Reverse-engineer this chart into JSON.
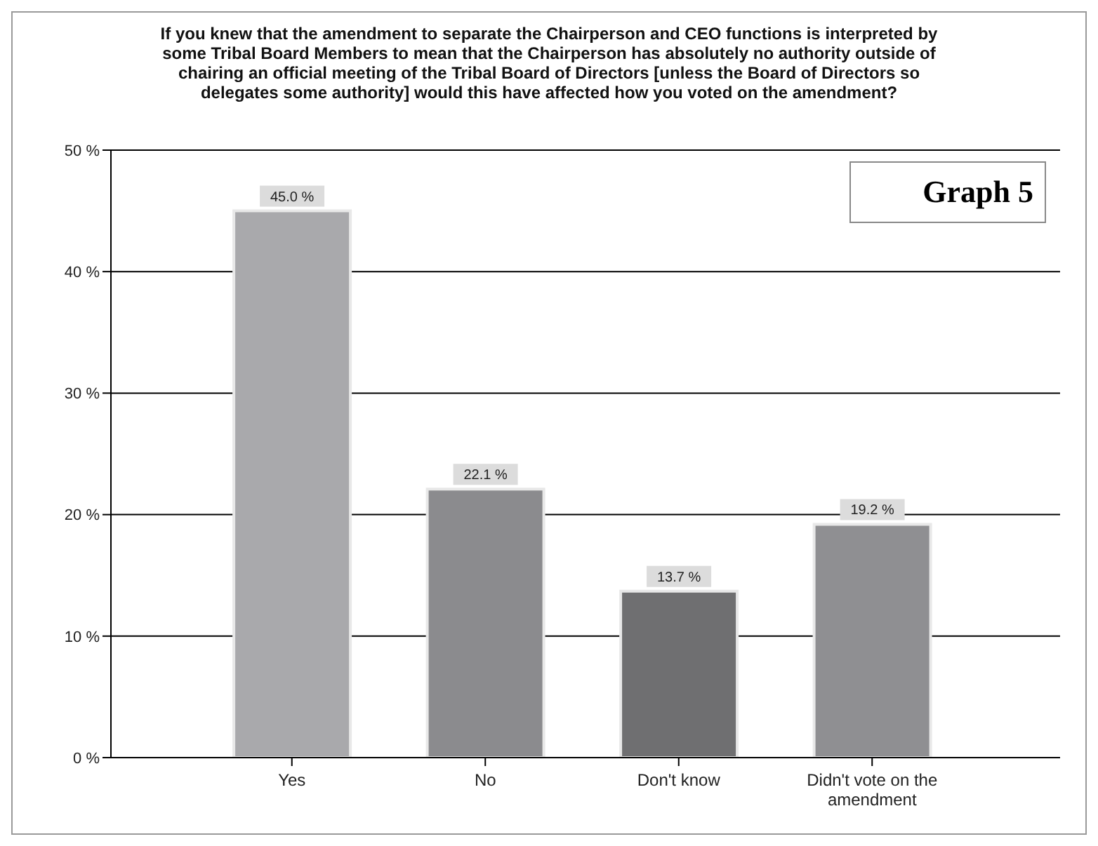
{
  "chart_data": {
    "type": "bar",
    "title": "If you knew that the amendment to separate the Chairperson and CEO functions is interpreted by some Tribal Board Members to mean that the Chairperson has absolutely no authority outside of chairing an official meeting of the Tribal Board of Directors [unless the Board of Directors so delegates some authority] would this have affected how you voted on the amendment?",
    "categories": [
      "Yes",
      "No",
      "Don't know",
      "Didn't vote on the amendment"
    ],
    "values": [
      45.0,
      22.1,
      13.7,
      19.2
    ],
    "colors": [
      "#a9a9ac",
      "#8b8b8e",
      "#6f6f71",
      "#8f8f92"
    ],
    "value_labels": [
      "45.0 %",
      "22.1 %",
      "13.7 %",
      "19.2 %"
    ],
    "ylim": [
      0,
      50
    ],
    "yticks": [
      {
        "value": 0,
        "label": "0 %"
      },
      {
        "value": 10,
        "label": "10 %"
      },
      {
        "value": 20,
        "label": "20 %"
      },
      {
        "value": 30,
        "label": "30 %"
      },
      {
        "value": 40,
        "label": "40 %"
      },
      {
        "value": 50,
        "label": "50 %"
      }
    ],
    "grid": "y",
    "annotations": [
      "Graph 5"
    ]
  }
}
